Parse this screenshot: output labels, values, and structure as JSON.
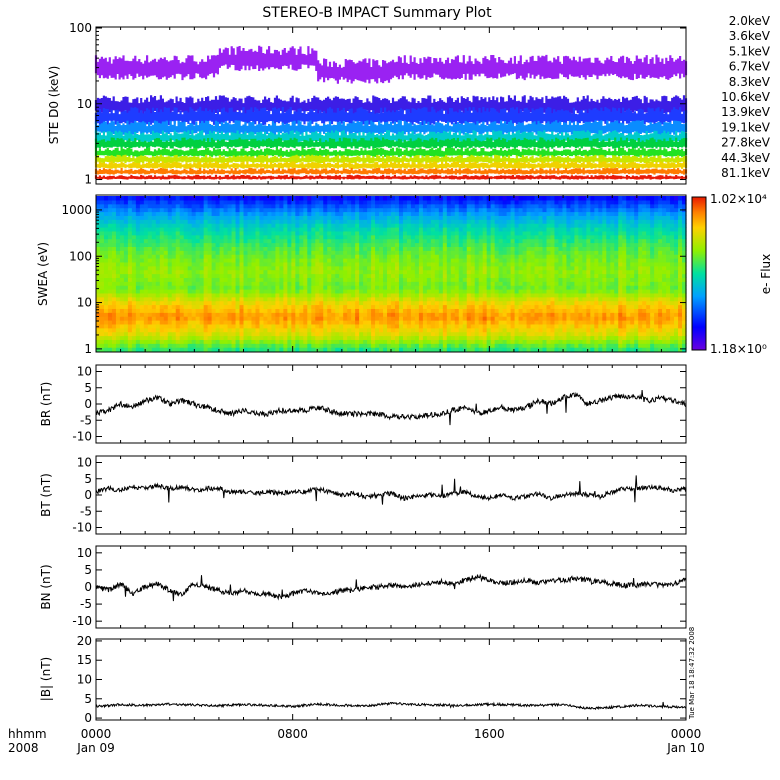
{
  "title": "STEREO-B IMPACT Summary Plot",
  "footer": {
    "hhmm_label": "hhmm",
    "year_label": "2008",
    "stamp": "Tue Mar 18 18:47:32 2008",
    "time_ticks": [
      "0000",
      "0800",
      "1600",
      "0000"
    ],
    "date_ticks": [
      "Jan 09",
      "",
      "",
      "Jan 10"
    ]
  },
  "chart_data": [
    {
      "type": "line",
      "panel": "ste",
      "ylabel": "STE D0 (keV)",
      "yscale": "log",
      "ylim": [
        0.9,
        100
      ],
      "y_ticks": [
        "100",
        "10",
        "1"
      ],
      "x_range_hours": [
        0,
        24
      ],
      "series": [
        {
          "name": "2.0keV",
          "color": "#9a22f2",
          "level": 30,
          "spread": 0.28
        },
        {
          "name": "3.6keV",
          "color": "#3c1ee6",
          "level": 9,
          "spread": 0.22
        },
        {
          "name": "5.1keV",
          "color": "#1e3cff",
          "level": 6.5,
          "spread": 0.2
        },
        {
          "name": "6.7keV",
          "color": "#0a8cff",
          "level": 4.6,
          "spread": 0.16
        },
        {
          "name": "8.3keV",
          "color": "#00cccc",
          "level": 3.5,
          "spread": 0.14
        },
        {
          "name": "10.6keV",
          "color": "#00d040",
          "level": 2.9,
          "spread": 0.12
        },
        {
          "name": "13.9keV",
          "color": "#22e222",
          "level": 2.2,
          "spread": 0.1
        },
        {
          "name": "19.1keV",
          "color": "#c8e600",
          "level": 1.8,
          "spread": 0.09
        },
        {
          "name": "27.8keV",
          "color": "#f0d200",
          "level": 1.5,
          "spread": 0.08
        },
        {
          "name": "44.3keV",
          "color": "#ff7a00",
          "level": 1.25,
          "spread": 0.07
        },
        {
          "name": "81.1keV",
          "color": "#e81a0a",
          "level": 1.05,
          "spread": 0.05
        }
      ]
    },
    {
      "type": "heatmap",
      "panel": "swea",
      "ylabel": "SWEA (eV)",
      "yscale": "log",
      "ylim": [
        0.9,
        2000
      ],
      "y_ticks": [
        "1000",
        "100",
        "10",
        "1"
      ],
      "colorbar_label": "e- Flux",
      "colorbar_max": "1.02×10⁴",
      "colorbar_min": "1.18×10⁰",
      "profile": [
        {
          "energy": 1,
          "level": 0.55
        },
        {
          "energy": 2,
          "level": 0.74
        },
        {
          "energy": 5,
          "level": 0.88
        },
        {
          "energy": 10,
          "level": 0.78
        },
        {
          "energy": 20,
          "level": 0.62
        },
        {
          "energy": 50,
          "level": 0.66
        },
        {
          "energy": 100,
          "level": 0.62
        },
        {
          "energy": 200,
          "level": 0.56
        },
        {
          "energy": 400,
          "level": 0.48
        },
        {
          "energy": 800,
          "level": 0.36
        },
        {
          "energy": 1500,
          "level": 0.22
        },
        {
          "energy": 2000,
          "level": 0.14
        }
      ]
    },
    {
      "type": "line",
      "panel": "br",
      "ylabel": "BR (nT)",
      "ylim": [
        -12,
        12
      ],
      "y_ticks": [
        "10",
        "5",
        "0",
        "-5",
        "-10"
      ],
      "x_hours": [
        0,
        0.5,
        1,
        1.5,
        2,
        2.5,
        3,
        3.5,
        4,
        4.5,
        5,
        5.5,
        6,
        6.5,
        7,
        7.5,
        8,
        8.5,
        9,
        9.5,
        10,
        10.5,
        11,
        11.5,
        12,
        12.5,
        13,
        13.5,
        14,
        14.5,
        15,
        15.5,
        16,
        16.5,
        17,
        17.5,
        18,
        18.5,
        19,
        19.5,
        20,
        20.5,
        21,
        21.5,
        22,
        22.5,
        23,
        23.5,
        24
      ],
      "values": [
        -3,
        -2,
        0,
        -1,
        1,
        2,
        0,
        1,
        0,
        -1,
        -2,
        -3,
        -2,
        -3,
        -3,
        -2,
        -2,
        -2,
        -1,
        -2,
        -3,
        -3,
        -3,
        -3,
        -4,
        -4,
        -4,
        -3.5,
        -3,
        -2,
        -1,
        -3,
        -2,
        -1,
        -2,
        -1,
        1,
        0,
        2,
        3,
        0,
        1,
        2,
        2.5,
        2,
        1,
        2,
        1,
        0
      ]
    },
    {
      "type": "line",
      "panel": "bt",
      "ylabel": "BT (nT)",
      "ylim": [
        -12,
        12
      ],
      "y_ticks": [
        "10",
        "5",
        "0",
        "-5",
        "-10"
      ],
      "x_hours": [
        0,
        0.5,
        1,
        1.5,
        2,
        2.5,
        3,
        3.5,
        4,
        4.5,
        5,
        5.5,
        6,
        6.5,
        7,
        7.5,
        8,
        8.5,
        9,
        9.5,
        10,
        10.5,
        11,
        11.5,
        12,
        12.5,
        13,
        13.5,
        14,
        14.5,
        15,
        15.5,
        16,
        16.5,
        17,
        17.5,
        18,
        18.5,
        19,
        19.5,
        20,
        20.5,
        21,
        21.5,
        22,
        22.5,
        23,
        23.5,
        24
      ],
      "values": [
        1,
        2,
        1.5,
        2.5,
        2,
        3,
        2,
        2.5,
        1.5,
        2,
        2,
        1,
        1,
        0.5,
        1,
        0.5,
        1,
        1,
        2,
        1,
        0,
        0.5,
        -0.5,
        0,
        0.5,
        -1,
        -0.5,
        0,
        -0.5,
        0.5,
        1,
        -0.5,
        -1,
        0,
        -1,
        -0.5,
        0.5,
        -1,
        0,
        0.5,
        0,
        -0.5,
        1,
        2,
        2,
        2.5,
        2,
        1.5,
        2
      ]
    },
    {
      "type": "line",
      "panel": "bn",
      "ylabel": "BN (nT)",
      "ylim": [
        -12,
        12
      ],
      "y_ticks": [
        "10",
        "5",
        "0",
        "-5",
        "-10"
      ],
      "x_hours": [
        0,
        0.5,
        1,
        1.5,
        2,
        2.5,
        3,
        3.5,
        4,
        4.5,
        5,
        5.5,
        6,
        6.5,
        7,
        7.5,
        8,
        8.5,
        9,
        9.5,
        10,
        10.5,
        11,
        11.5,
        12,
        12.5,
        13,
        13.5,
        14,
        14.5,
        15,
        15.5,
        16,
        16.5,
        17,
        17.5,
        18,
        18.5,
        19,
        19.5,
        20,
        20.5,
        21,
        21.5,
        22,
        22.5,
        23,
        23.5,
        24
      ],
      "values": [
        0,
        -1,
        1,
        -2,
        0,
        1,
        -1,
        -2,
        1,
        0,
        -1,
        -2,
        -1,
        -2,
        -2,
        -3,
        -2,
        -1,
        -2,
        -2,
        -1,
        -1,
        0,
        0,
        0.5,
        0,
        0.5,
        1,
        1.5,
        1,
        2,
        3,
        2,
        1,
        1.5,
        2,
        1,
        2,
        2,
        2.5,
        2,
        1.5,
        1,
        0.5,
        0.5,
        1,
        0.5,
        1,
        2
      ]
    },
    {
      "type": "line",
      "panel": "bmag",
      "ylabel": "|B| (nT)",
      "ylim": [
        -0.5,
        20.5
      ],
      "y_ticks": [
        "20",
        "15",
        "10",
        "5",
        "0"
      ],
      "x_hours": [
        0,
        1,
        2,
        3,
        4,
        5,
        6,
        7,
        8,
        9,
        10,
        11,
        12,
        13,
        14,
        15,
        16,
        17,
        18,
        19,
        20,
        21,
        22,
        23,
        24
      ],
      "values": [
        3,
        3.5,
        3.3,
        3.6,
        3.4,
        3.2,
        3.5,
        3.3,
        3,
        3.6,
        3.3,
        3.2,
        3.8,
        3.5,
        3.4,
        3.3,
        3.6,
        3.4,
        3.2,
        3.5,
        2.5,
        2.8,
        3.3,
        3,
        2.8
      ]
    }
  ]
}
